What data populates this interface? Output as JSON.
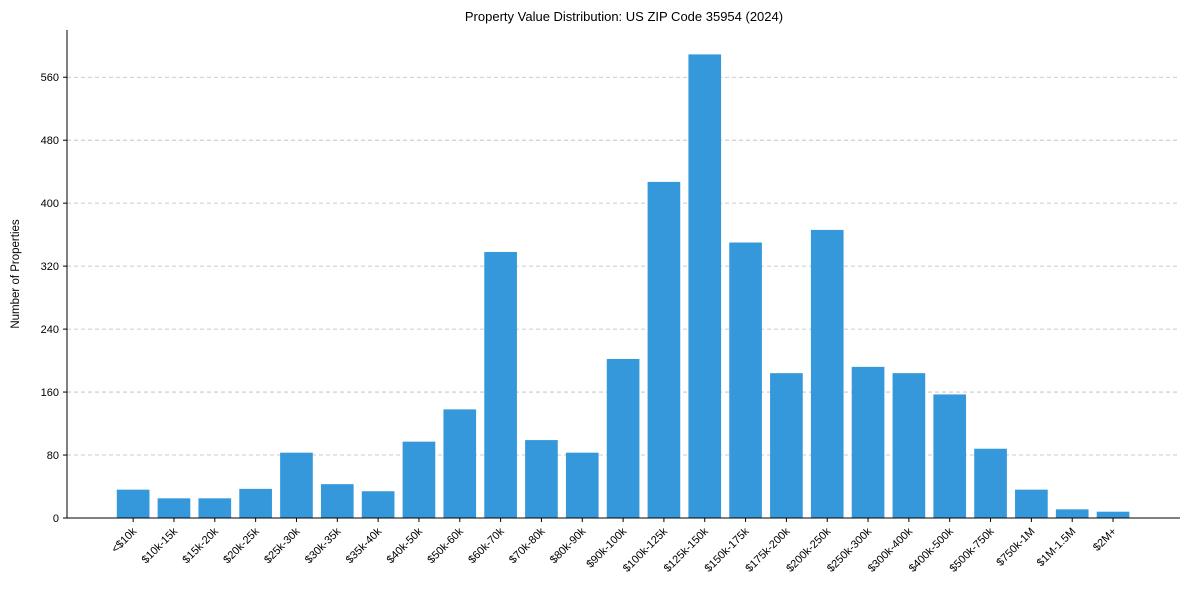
{
  "chart_data": {
    "type": "bar",
    "title": "Property Value Distribution: US ZIP Code 35954 (2024)",
    "xlabel": "",
    "ylabel": "Number of Properties",
    "ylim": [
      0,
      620
    ],
    "yticks": [
      0,
      80,
      160,
      240,
      320,
      400,
      480,
      560
    ],
    "grid": "y-dashed",
    "color": "#3498db",
    "categories": [
      "<$10k",
      "$10k-15k",
      "$15k-20k",
      "$20k-25k",
      "$25k-30k",
      "$30k-35k",
      "$35k-40k",
      "$40k-50k",
      "$50k-60k",
      "$60k-70k",
      "$70k-80k",
      "$80k-90k",
      "$90k-100k",
      "$100k-125k",
      "$125k-150k",
      "$150k-175k",
      "$175k-200k",
      "$200k-250k",
      "$250k-300k",
      "$300k-400k",
      "$400k-500k",
      "$500k-750k",
      "$750k-1M",
      "$1M-1.5M",
      "$2M+"
    ],
    "values": [
      36,
      25,
      25,
      37,
      83,
      43,
      34,
      97,
      138,
      338,
      99,
      83,
      202,
      427,
      589,
      350,
      184,
      366,
      192,
      184,
      157,
      88,
      36,
      11,
      8
    ]
  }
}
